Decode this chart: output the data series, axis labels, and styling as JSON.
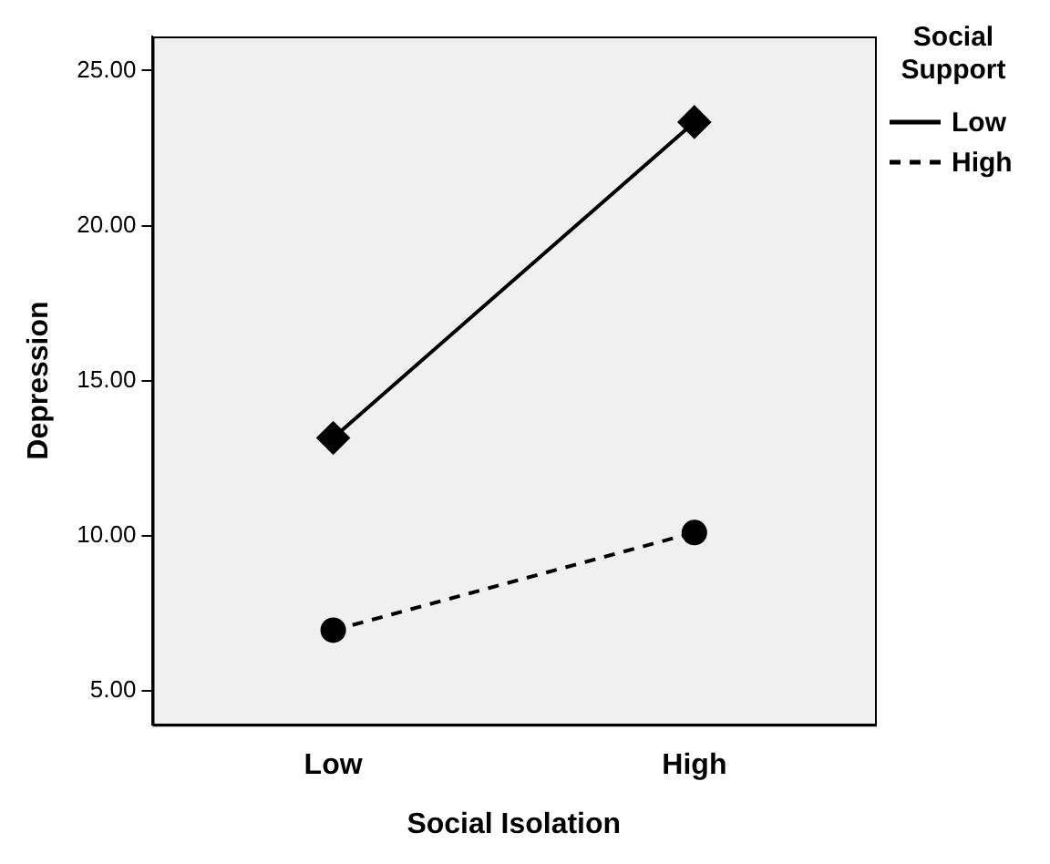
{
  "chart_data": {
    "type": "line",
    "xlabel": "Social Isolation",
    "ylabel": "Depression",
    "legend_title": "Social Support",
    "categories": [
      "Low",
      "High"
    ],
    "series": [
      {
        "name": "Low",
        "color": "#000000",
        "values": [
          13.15,
          23.34
        ],
        "marker": "diamond",
        "line_style": "solid"
      },
      {
        "name": "High",
        "color": "#000000",
        "values": [
          6.95,
          10.1
        ],
        "marker": "circle",
        "line_style": "dashed"
      }
    ],
    "ylim": [
      3.9,
      26.1
    ],
    "yticks": [
      {
        "value": 5,
        "label": "5.00"
      },
      {
        "value": 10,
        "label": "10.00"
      },
      {
        "value": 15,
        "label": "15.00"
      },
      {
        "value": 20,
        "label": "20.00"
      },
      {
        "value": 25,
        "label": "25.00"
      }
    ],
    "grid": false,
    "legend": "top right"
  }
}
